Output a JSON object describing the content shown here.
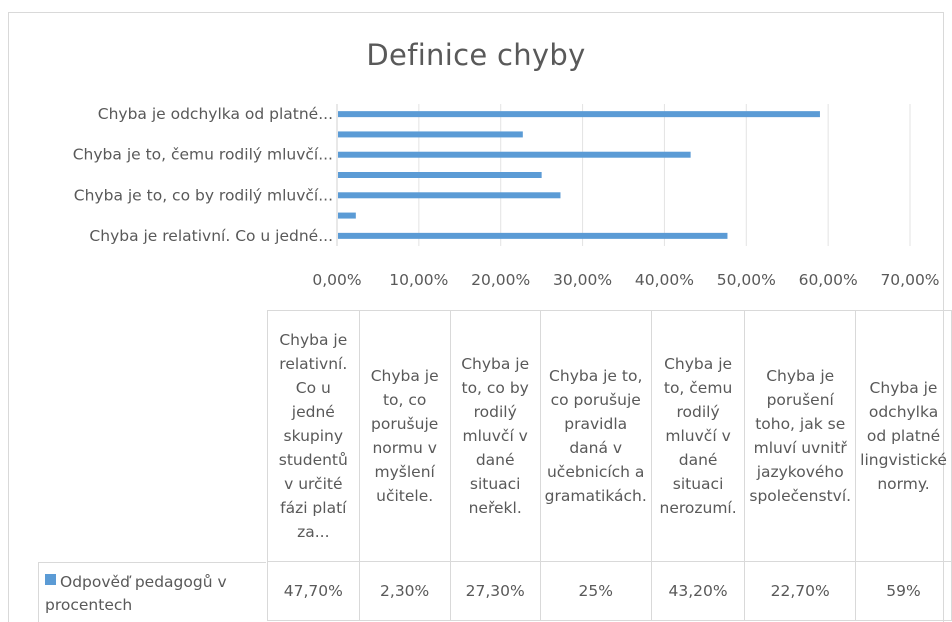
{
  "chart_data": {
    "type": "bar",
    "orientation": "horizontal",
    "title": "Definice chyby",
    "series": [
      {
        "name": "Odpověď pedagogů v procentech",
        "color": "#5b9bd5",
        "values": [
          47.7,
          2.3,
          27.3,
          25,
          43.2,
          22.7,
          59
        ]
      }
    ],
    "categories": [
      "Chyba je relativní. Co u jedné skupiny studentů v určité fázi platí za...",
      "Chyba je to, co porušuje normu v myšlení učitele.",
      "Chyba je to, co by rodilý mluvčí v dané situaci neřekl.",
      "Chyba je to, co porušuje pravidla daná v učebnicích a gramatikách.",
      "Chyba je to, čemu rodilý mluvčí v dané situaci nerozumí.",
      "Chyba je porušení toho, jak se mluví uvnitř jazykového společenství.",
      "Chyba je odchylka od platné lingvistické normy."
    ],
    "axis_labels": [
      "Chyba je relativní. Co u jedné...",
      "",
      "Chyba je to, co by rodilý mluvčí...",
      "",
      "Chyba je to, čemu rodilý mluvčí...",
      "",
      "Chyba je odchylka od platné..."
    ],
    "table_headers": [
      "Chyba je relativní. Co u jedné skupiny studentů v určité fázi platí za...",
      "Chyba je to, co porušuje normu v myšlení učitele.",
      "Chyba je to, co by rodilý mluvčí v dané situaci neřekl.",
      "Chyba je to, co porušuje pravidla daná v učebnicích a gramatikách.",
      "Chyba je to, čemu rodilý mluvčí v dané situaci nerozumí.",
      "Chyba je porušení toho, jak se mluví uvnitř jazykového společenství.",
      "Chyba je odchylka od platné lingvistické normy."
    ],
    "value_labels": [
      "47,70%",
      "2,30%",
      "27,30%",
      "25%",
      "43,20%",
      "22,70%",
      "59%"
    ],
    "x_ticks": [
      "0,00%",
      "10,00%",
      "20,00%",
      "30,00%",
      "40,00%",
      "50,00%",
      "60,00%",
      "70,00%"
    ],
    "xlim": [
      0,
      70
    ],
    "grid": true,
    "legend": "data table"
  }
}
